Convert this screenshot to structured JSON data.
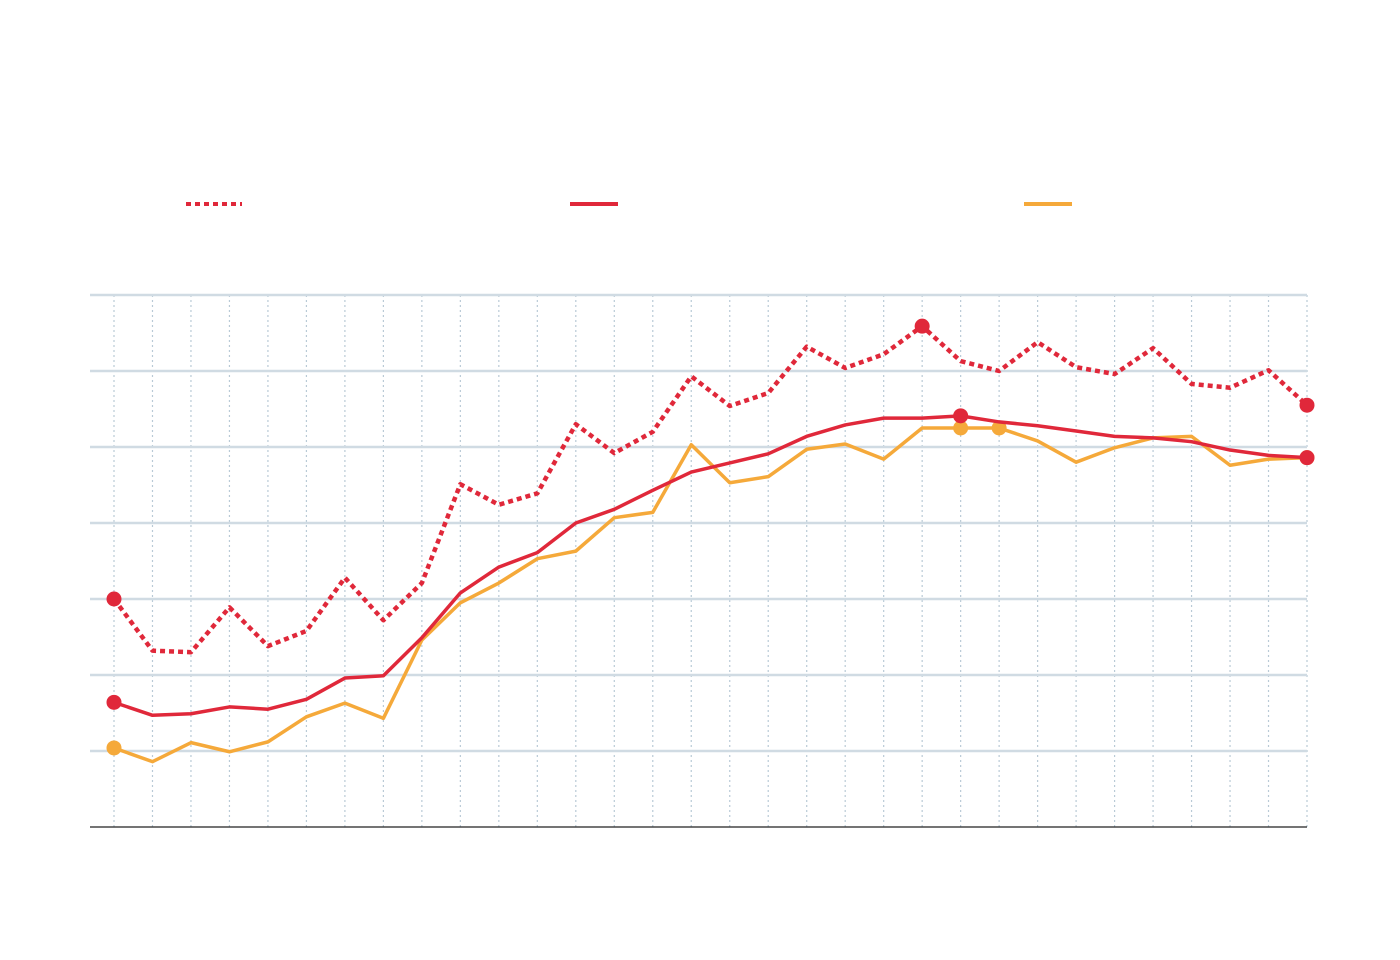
{
  "chart_data": {
    "type": "line",
    "categories": [
      null,
      null,
      null,
      null,
      null,
      null,
      null,
      null,
      null,
      null,
      null,
      null,
      null,
      null,
      null,
      null,
      null,
      null,
      null,
      null,
      null,
      null,
      null,
      null,
      null,
      null,
      null,
      null,
      null,
      null,
      null,
      null
    ],
    "ylim": [
      0,
      7
    ],
    "yticks": [
      0,
      1,
      2,
      3,
      4,
      5,
      6,
      7
    ],
    "grid": true,
    "legend": "top",
    "series": [
      {
        "color": "#e0283a",
        "dash": "dotted",
        "markers": [
          0,
          21,
          31
        ],
        "values": [
          3.0,
          2.32,
          2.3,
          2.89,
          2.38,
          2.58,
          3.28,
          2.72,
          3.21,
          4.51,
          4.24,
          4.39,
          5.3,
          4.92,
          5.2,
          5.93,
          5.54,
          5.71,
          6.32,
          6.04,
          6.22,
          6.59,
          6.13,
          6.0,
          6.38,
          6.05,
          5.96,
          6.3,
          5.83,
          5.78,
          6.01,
          5.55
        ]
      },
      {
        "color": "#e0283a",
        "dash": "solid",
        "markers": [
          0,
          22,
          31
        ],
        "values": [
          1.64,
          1.47,
          1.49,
          1.58,
          1.55,
          1.68,
          1.96,
          1.99,
          2.49,
          3.08,
          3.42,
          3.61,
          4.0,
          4.18,
          4.43,
          4.67,
          4.79,
          4.91,
          5.14,
          5.29,
          5.38,
          5.38,
          5.41,
          5.33,
          5.28,
          5.21,
          5.14,
          5.12,
          5.07,
          4.96,
          4.89,
          4.86
        ]
      },
      {
        "color": "#f5a93a",
        "dash": "solid",
        "markers": [
          0,
          22,
          23,
          31
        ],
        "values": [
          1.04,
          0.86,
          1.11,
          0.99,
          1.12,
          1.45,
          1.63,
          1.43,
          2.46,
          2.95,
          3.21,
          3.53,
          3.63,
          4.07,
          4.14,
          5.03,
          4.53,
          4.61,
          4.97,
          5.04,
          4.84,
          5.25,
          5.25,
          5.25,
          5.08,
          4.8,
          4.99,
          5.12,
          5.14,
          4.76,
          4.84,
          4.86
        ]
      }
    ]
  }
}
